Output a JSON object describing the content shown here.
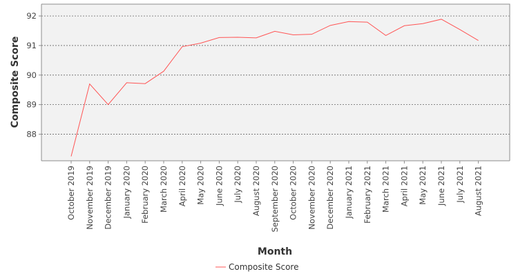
{
  "chart_data": {
    "type": "line",
    "title": "",
    "xlabel": "Month",
    "ylabel": "Composite Score",
    "ylim": [
      87.1,
      92.4
    ],
    "yticks": [
      88,
      89,
      90,
      91,
      92
    ],
    "grid": true,
    "legend_position": "bottom",
    "categories": [
      "October 2019",
      "November 2019",
      "December 2019",
      "January 2020",
      "February 2020",
      "March 2020",
      "April 2020",
      "May 2020",
      "June 2020",
      "July 2020",
      "August 2020",
      "September 2020",
      "October 2020",
      "November 2020",
      "December 2020",
      "January 2021",
      "February 2021",
      "March 2021",
      "April 2021",
      "May 2021",
      "June 2021",
      "July 2021",
      "August 2021"
    ],
    "series": [
      {
        "name": "Composite Score",
        "color": "#ff5555",
        "values": [
          87.25,
          89.7,
          89.0,
          89.74,
          89.71,
          90.13,
          90.96,
          91.08,
          91.27,
          91.28,
          91.26,
          91.48,
          91.36,
          91.38,
          91.68,
          91.81,
          91.79,
          91.34,
          91.67,
          91.74,
          91.89,
          91.54,
          91.17
        ]
      }
    ]
  }
}
